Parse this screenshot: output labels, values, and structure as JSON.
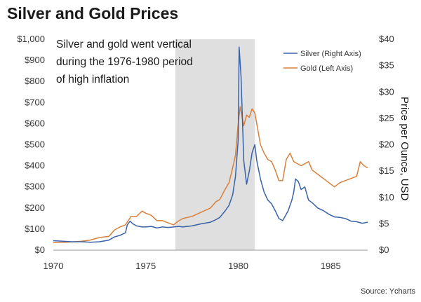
{
  "chart_data": {
    "type": "line",
    "title": "Silver and Gold Prices",
    "annotation": [
      "Silver and gold went vertical",
      "during the 1976-1980 period",
      "of high inflation"
    ],
    "highlight_range": [
      1976.6,
      1980.9
    ],
    "ylabel_right": "Price per Ounce, USD",
    "source": "Source: Ycharts",
    "xlim": [
      1970,
      1987
    ],
    "xticks": [
      1970,
      1975,
      1980,
      1985
    ],
    "ylim_left": [
      0,
      1000
    ],
    "yticks_left": [
      "$0",
      "$100",
      "$200",
      "$300",
      "$400",
      "$500",
      "$600",
      "$700",
      "$800",
      "$900",
      "$1,000"
    ],
    "ylim_right": [
      0,
      40
    ],
    "yticks_right": [
      "$0",
      "$5",
      "$10",
      "$15",
      "$20",
      "$25",
      "$30",
      "$35",
      "$40"
    ],
    "legend_position": "top-right",
    "series": [
      {
        "name": "Silver (Right Axis)",
        "axis": "right",
        "color": "#3a62a8",
        "x": [
          1970.0,
          1970.5,
          1971.0,
          1971.5,
          1972.0,
          1972.5,
          1973.0,
          1973.3,
          1973.6,
          1973.9,
          1974.0,
          1974.15,
          1974.3,
          1974.5,
          1974.8,
          1975.0,
          1975.3,
          1975.6,
          1975.9,
          1976.2,
          1976.5,
          1976.8,
          1977.0,
          1977.5,
          1978.0,
          1978.5,
          1978.8,
          1979.0,
          1979.3,
          1979.5,
          1979.7,
          1979.85,
          1980.0,
          1980.05,
          1980.15,
          1980.3,
          1980.45,
          1980.6,
          1980.75,
          1980.9,
          1981.0,
          1981.2,
          1981.4,
          1981.6,
          1981.8,
          1982.0,
          1982.2,
          1982.4,
          1982.55,
          1982.7,
          1982.9,
          1983.0,
          1983.1,
          1983.25,
          1983.4,
          1983.6,
          1983.8,
          1984.0,
          1984.3,
          1984.6,
          1984.9,
          1985.2,
          1985.5,
          1985.8,
          1986.1,
          1986.4,
          1986.7,
          1987.0
        ],
        "y": [
          1.8,
          1.7,
          1.6,
          1.6,
          1.5,
          1.6,
          1.9,
          2.5,
          2.8,
          3.3,
          4.8,
          5.5,
          5.0,
          4.6,
          4.4,
          4.4,
          4.5,
          4.2,
          4.4,
          4.3,
          4.4,
          4.5,
          4.4,
          4.6,
          5.0,
          5.3,
          5.8,
          6.2,
          7.5,
          8.5,
          10.5,
          14.0,
          21.0,
          38.5,
          33.0,
          17.0,
          12.5,
          15.0,
          18.5,
          20.0,
          17.0,
          13.5,
          11.0,
          9.5,
          8.8,
          7.5,
          6.0,
          5.6,
          6.5,
          7.5,
          9.5,
          11.0,
          13.5,
          13.0,
          11.5,
          12.0,
          9.5,
          9.0,
          8.0,
          7.5,
          6.8,
          6.3,
          6.2,
          6.0,
          5.5,
          5.4,
          5.1,
          5.3
        ]
      },
      {
        "name": "Gold (Left Axis)",
        "axis": "left",
        "color": "#d9803a",
        "x": [
          1970.0,
          1970.5,
          1971.0,
          1971.5,
          1972.0,
          1972.5,
          1973.0,
          1973.3,
          1973.6,
          1973.9,
          1974.2,
          1974.5,
          1974.8,
          1975.0,
          1975.3,
          1975.6,
          1975.9,
          1976.2,
          1976.5,
          1976.8,
          1977.0,
          1977.5,
          1978.0,
          1978.5,
          1978.8,
          1979.0,
          1979.3,
          1979.5,
          1979.7,
          1979.85,
          1980.0,
          1980.1,
          1980.3,
          1980.45,
          1980.6,
          1980.75,
          1980.9,
          1981.0,
          1981.2,
          1981.4,
          1981.6,
          1981.8,
          1982.0,
          1982.2,
          1982.4,
          1982.6,
          1982.8,
          1983.0,
          1983.2,
          1983.4,
          1983.6,
          1983.8,
          1984.0,
          1984.3,
          1984.6,
          1984.9,
          1985.2,
          1985.5,
          1985.8,
          1986.1,
          1986.4,
          1986.6,
          1986.8,
          1987.0
        ],
        "y": [
          36,
          37,
          39,
          42,
          48,
          60,
          65,
          95,
          110,
          120,
          160,
          160,
          185,
          175,
          165,
          140,
          140,
          130,
          120,
          140,
          150,
          160,
          180,
          200,
          230,
          240,
          290,
          320,
          390,
          450,
          600,
          680,
          590,
          640,
          630,
          670,
          650,
          600,
          500,
          460,
          430,
          420,
          380,
          330,
          330,
          430,
          460,
          420,
          410,
          400,
          410,
          420,
          380,
          360,
          340,
          320,
          300,
          320,
          330,
          340,
          350,
          420,
          400,
          390
        ]
      }
    ]
  }
}
